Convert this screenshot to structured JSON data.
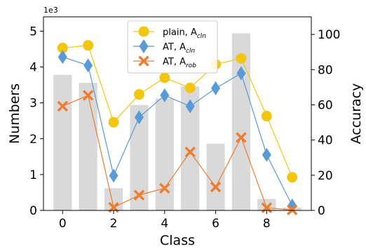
{
  "chart_data": {
    "type": "bar+line",
    "xlabel": "Class",
    "ylabel_left": "Numbers",
    "ylabel_right": "Accuracy",
    "left_axis_offset": "1e3",
    "x_ticks": [
      "0",
      "2",
      "4",
      "6",
      "8"
    ],
    "x_tick_values": [
      0,
      2,
      4,
      6,
      8
    ],
    "left_ticks": [
      "0",
      "1",
      "2",
      "3",
      "4",
      "5"
    ],
    "left_tick_values": [
      0,
      1,
      2,
      3,
      4,
      5
    ],
    "right_ticks": [
      "0",
      "20",
      "40",
      "60",
      "80",
      "100"
    ],
    "right_tick_values": [
      0,
      20,
      40,
      60,
      80,
      100
    ],
    "xlim": [
      -0.75,
      9.75
    ],
    "ylim_left": [
      0,
      5.4
    ],
    "ylim_right": [
      0,
      110
    ],
    "classes": [
      0,
      1,
      2,
      3,
      4,
      5,
      6,
      7,
      8,
      9
    ],
    "bars": {
      "color": "#d9d9d9",
      "values": [
        3.78,
        3.56,
        0.62,
        2.94,
        3.12,
        3.46,
        1.86,
        4.94,
        0.32,
        0.08
      ]
    },
    "series": [
      {
        "name": "plain, A",
        "subscript": "cln",
        "color": "#f2c50f",
        "marker": "circle",
        "values": [
          92.3,
          93.8,
          50.1,
          65.9,
          75.4,
          69.6,
          83.0,
          86.4,
          53.6,
          18.8
        ]
      },
      {
        "name": "AT, A",
        "subscript": "cln",
        "color": "#5b9bd5",
        "marker": "diamond",
        "values": [
          87.2,
          82.4,
          19.8,
          52.9,
          65.4,
          59.2,
          69.4,
          77.9,
          31.6,
          2.8
        ]
      },
      {
        "name": "AT, A",
        "subscript": "rob",
        "color": "#ed7d31",
        "marker": "x",
        "values": [
          59.2,
          65.4,
          1.7,
          8.7,
          12.6,
          33.2,
          13.3,
          41.4,
          1.5,
          0.3
        ]
      }
    ],
    "legend_position": "top-center",
    "grid": false
  }
}
